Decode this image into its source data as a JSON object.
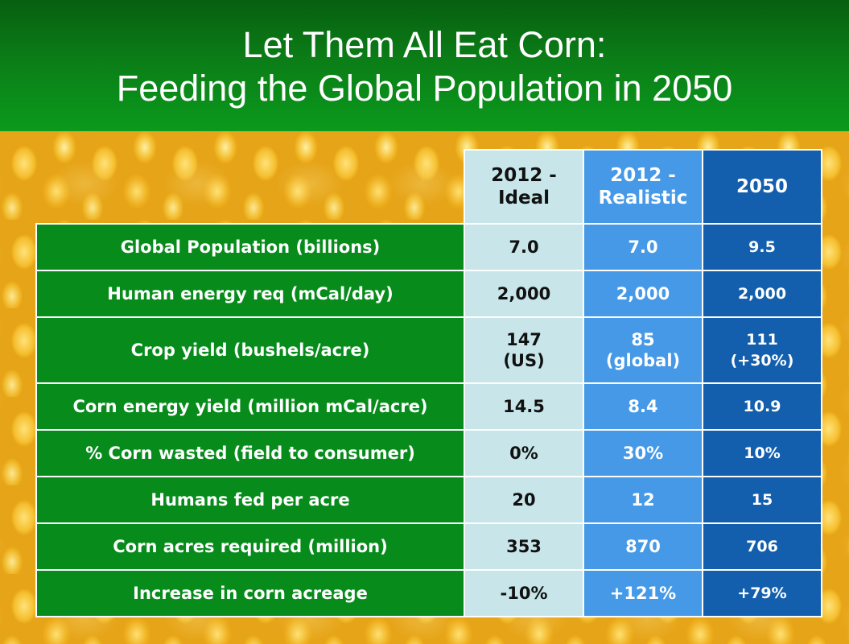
{
  "title": {
    "line1": "Let Them All Eat Corn:",
    "line2": "Feeding the Global Population in 2050"
  },
  "colors": {
    "header_green": "#0b7d17",
    "label_green": "#078c1c",
    "ideal_col": "#c8e6ea",
    "realistic_col": "#4599e6",
    "future_col": "#135fad"
  },
  "table": {
    "columns": [
      {
        "line1": "2012 -",
        "line2": "Ideal"
      },
      {
        "line1": "2012 -",
        "line2": "Realistic"
      },
      {
        "line1": "2050",
        "line2": ""
      }
    ],
    "rows": [
      {
        "label": "Global Population (billions)",
        "ideal": "7.0",
        "realistic": "7.0",
        "future": "9.5"
      },
      {
        "label": "Human energy req (mCal/day)",
        "ideal": "2,000",
        "realistic": "2,000",
        "future": "2,000"
      },
      {
        "label": "Crop yield (bushels/acre)",
        "ideal": "147",
        "ideal_sub": "(US)",
        "realistic": "85",
        "realistic_sub": "(global)",
        "future": "111",
        "future_sub": "(+30%)"
      },
      {
        "label": "Corn energy yield (million mCal/acre)",
        "ideal": "14.5",
        "realistic": "8.4",
        "future": "10.9"
      },
      {
        "label": "% Corn wasted (field to consumer)",
        "ideal": "0%",
        "realistic": "30%",
        "future": "10%"
      },
      {
        "label": "Humans fed per acre",
        "ideal": "20",
        "realistic": "12",
        "future": "15"
      },
      {
        "label": "Corn acres required (million)",
        "ideal": "353",
        "realistic": "870",
        "future": "706"
      },
      {
        "label": "Increase in corn acreage",
        "ideal": "-10%",
        "realistic": "+121%",
        "future": "+79%"
      }
    ]
  }
}
